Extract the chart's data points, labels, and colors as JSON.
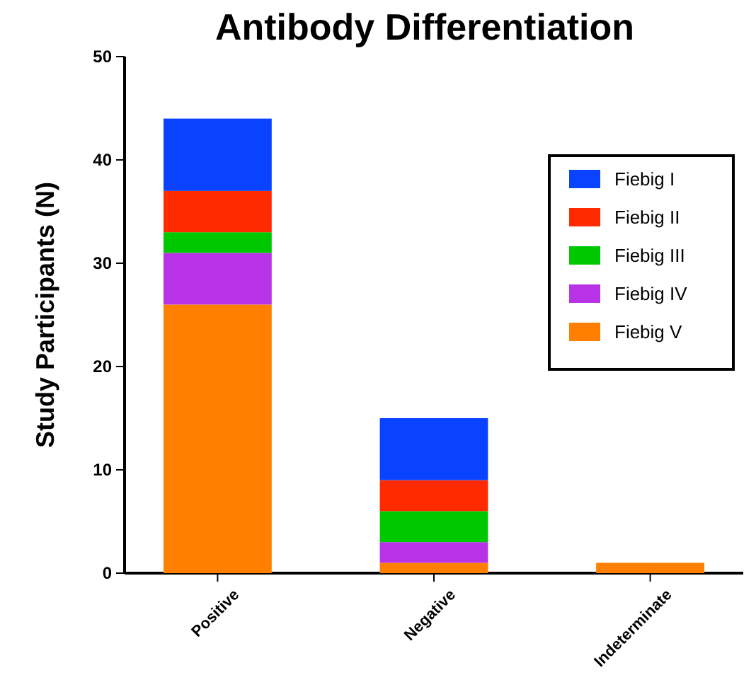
{
  "chart_data": {
    "type": "bar",
    "title": "Antibody Differentiation",
    "ylabel": "Study Participants (N)",
    "categories": [
      "Positive",
      "Negative",
      "Indeterminate"
    ],
    "stacked": true,
    "ylim": [
      0,
      50
    ],
    "yticks": [
      0,
      10,
      20,
      30,
      40,
      50
    ],
    "grid": false,
    "legend": "top right",
    "series": [
      {
        "name": "Fiebig V",
        "color": "#ff8000",
        "values": [
          26,
          1,
          1
        ]
      },
      {
        "name": "Fiebig IV",
        "color": "#b832e6",
        "values": [
          5,
          2,
          0
        ]
      },
      {
        "name": "Fiebig III",
        "color": "#00c800",
        "values": [
          2,
          3,
          0
        ]
      },
      {
        "name": "Fiebig II",
        "color": "#ff2a00",
        "values": [
          4,
          3,
          0
        ]
      },
      {
        "name": "Fiebig I",
        "color": "#0a43ff",
        "values": [
          7,
          6,
          0
        ]
      }
    ]
  }
}
